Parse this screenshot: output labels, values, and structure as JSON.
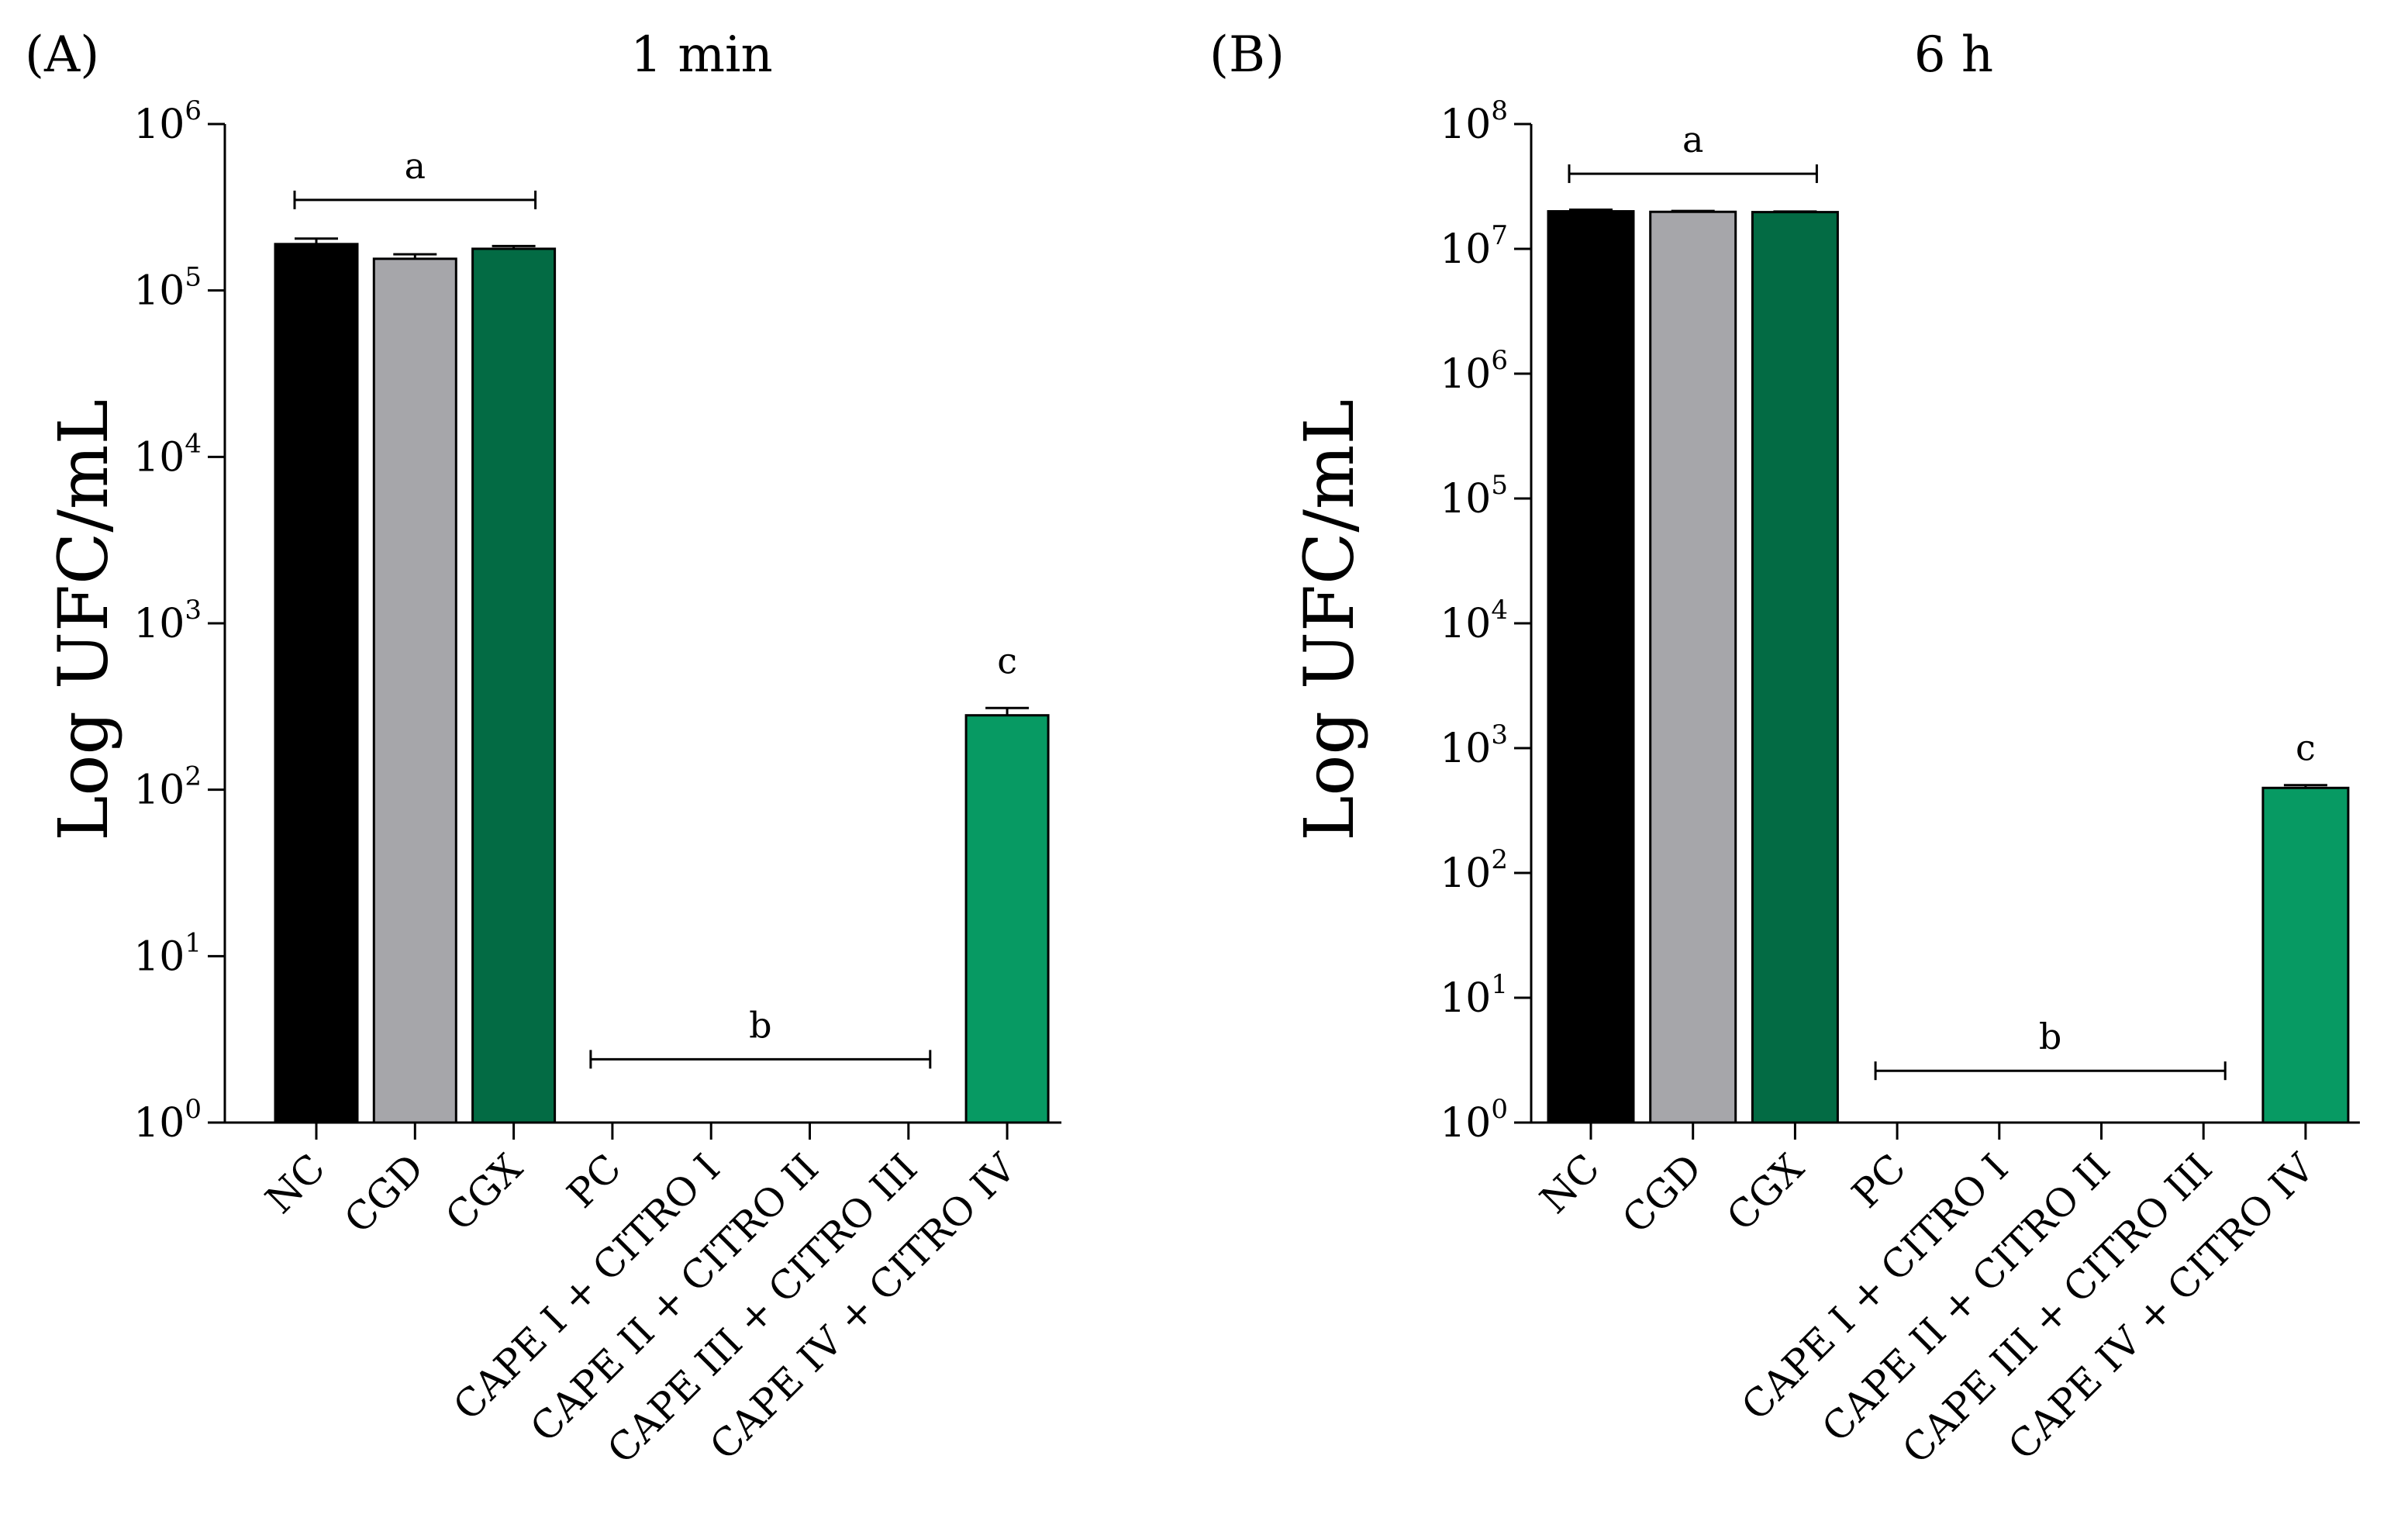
{
  "chart_data": [
    {
      "type": "bar",
      "panel_label": "(A)",
      "title": "1 min",
      "ylabel": "Log UFC/mL",
      "yscale": "log",
      "ylim": [
        1,
        1000000
      ],
      "ytick_base": "10",
      "ytick_exponents": [
        "0",
        "1",
        "2",
        "3",
        "4",
        "5",
        "6"
      ],
      "categories": [
        "NC",
        "CGD",
        "CGX",
        "PC",
        "CAPE I + CITRO I",
        "CAPE II + CITRO II",
        "CAPE III + CITRO III",
        "CAPE IV + CITRO IV"
      ],
      "values": [
        190000,
        155000,
        178000,
        1,
        1,
        1,
        1,
        280.0
      ],
      "errors": [
        15000,
        10000,
        7000,
        0,
        0,
        0,
        0,
        30
      ],
      "colors": [
        "#000000",
        "#a6a6aa",
        "#036b44",
        "#036b44",
        "#036b44",
        "#036b44",
        "#036b44",
        "#079a63"
      ],
      "significance": [
        {
          "label": "a",
          "from": 0,
          "to": 2,
          "y": 350000
        },
        {
          "label": "b",
          "from": 3,
          "to": 6,
          "y": 2.4
        },
        {
          "label": "c",
          "from": 7,
          "to": 7,
          "y": 500
        }
      ]
    },
    {
      "type": "bar",
      "panel_label": "(B)",
      "title": "6 h",
      "ylabel": "Log UFC/mL",
      "yscale": "log",
      "ylim": [
        1,
        100000000
      ],
      "ytick_base": "10",
      "ytick_exponents": [
        "0",
        "1",
        "2",
        "3",
        "4",
        "5",
        "6",
        "7",
        "8"
      ],
      "categories": [
        "NC",
        "CGD",
        "CGX",
        "PC",
        "CAPE I + CITRO I",
        "CAPE II + CITRO II",
        "CAPE III + CITRO III",
        "CAPE IV + CITRO IV"
      ],
      "values": [
        20000000,
        19800000,
        19700000,
        1,
        1,
        1,
        1,
        480
      ],
      "errors": [
        600000,
        300000,
        200000,
        0,
        0,
        0,
        0,
        25
      ],
      "colors": [
        "#000000",
        "#a6a6aa",
        "#036b44",
        "#036b44",
        "#036b44",
        "#036b44",
        "#036b44",
        "#079a63"
      ],
      "significance": [
        {
          "label": "a",
          "from": 0,
          "to": 2,
          "y": 40000000
        },
        {
          "label": "b",
          "from": 3,
          "to": 6,
          "y": 2.6
        },
        {
          "label": "c",
          "from": 7,
          "to": 7,
          "y": 800
        }
      ]
    }
  ]
}
